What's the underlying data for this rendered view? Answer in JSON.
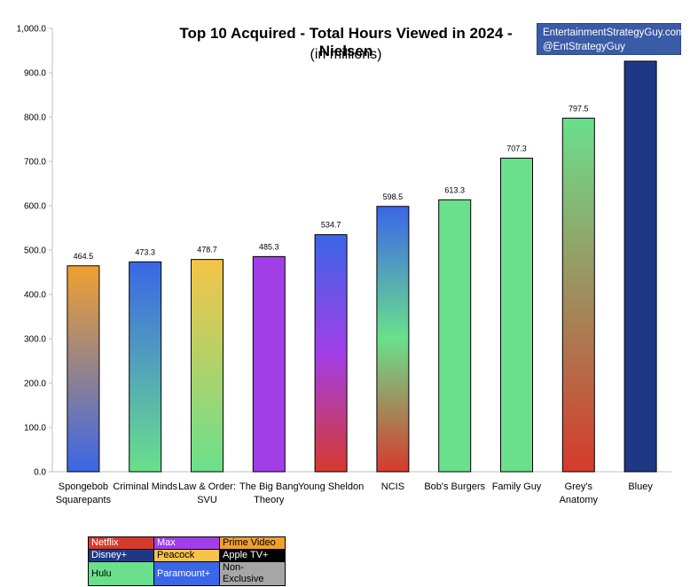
{
  "chart_data": {
    "type": "bar",
    "title": "Top 10 Acquired - Total Hours Viewed in 2024 - Nielsen",
    "subtitle": "(in millions)",
    "categories": [
      "Spongebob Squarepants",
      "Criminal Minds",
      "Law & Order: SVU",
      "The Big Bang Theory",
      "Young Sheldon",
      "NCIS",
      "Bob's Burgers",
      "Family Guy",
      "Grey's Anatomy",
      "Bluey"
    ],
    "category_lines": [
      [
        "Spongebob",
        "Squarepants"
      ],
      [
        "Criminal Minds"
      ],
      [
        "Law & Order:",
        "SVU"
      ],
      [
        "The Big Bang",
        "Theory"
      ],
      [
        "Young Sheldon"
      ],
      [
        "NCIS"
      ],
      [
        "Bob's Burgers"
      ],
      [
        "Family Guy"
      ],
      [
        "Grey's",
        "Anatomy"
      ],
      [
        "Bluey"
      ]
    ],
    "values": [
      464.5,
      473.3,
      478.7,
      485.3,
      534.7,
      598.5,
      613.3,
      707.3,
      797.5,
      926
    ],
    "data_labels": [
      "464.5",
      "473.3",
      "478.7",
      "485.3",
      "534.7",
      "598.5",
      "613.3",
      "707.3",
      "797.5",
      ""
    ],
    "bar_colors": [
      [
        "#f0a030",
        "#3b66e6"
      ],
      [
        "#3b66e6",
        "#6ae08c"
      ],
      [
        "#f5c448",
        "#6ae08c"
      ],
      [
        "#a23ee8"
      ],
      [
        "#3b66e6",
        "#a23ee8",
        "#d63a2c"
      ],
      [
        "#3b66e6",
        "#6ae08c",
        "#d63a2c"
      ],
      [
        "#6ae08c"
      ],
      [
        "#6ae08c"
      ],
      [
        "#6ae08c",
        "#d63a2c"
      ],
      [
        "#1f3886"
      ]
    ],
    "ylim": [
      0,
      1000
    ],
    "yticks": [
      "0.0",
      "100.0",
      "200.0",
      "300.0",
      "400.0",
      "500.0",
      "600.0",
      "700.0",
      "800.0",
      "900.0",
      "1,000.0"
    ],
    "grid": false
  },
  "brand": {
    "line1": "EntertainmentStrategyGuy.com",
    "line2": "@EntStrategyGuy"
  },
  "legend": {
    "rows": [
      [
        {
          "label": "Netflix",
          "color": "#d63a2c",
          "text_color": "#ffffff"
        },
        {
          "label": "Max",
          "color": "#a23ee8",
          "text_color": "#ffffff"
        },
        {
          "label": "Prime Video",
          "color": "#f0a030",
          "text_color": "#000000"
        }
      ],
      [
        {
          "label": "Disney+",
          "color": "#1f3886",
          "text_color": "#ffffff"
        },
        {
          "label": "Peacock",
          "color": "#f5c448",
          "text_color": "#000000"
        },
        {
          "label": "Apple TV+",
          "color": "#000000",
          "text_color": "#ffffff"
        }
      ],
      [
        {
          "label": "Hulu",
          "color": "#6ae08c",
          "text_color": "#000000"
        },
        {
          "label": "Paramount+",
          "color": "#3b66e6",
          "text_color": "#ffffff"
        },
        {
          "label": "Non-Exclusive",
          "color": "#a6a6a6",
          "text_color": "#000000"
        }
      ]
    ]
  }
}
